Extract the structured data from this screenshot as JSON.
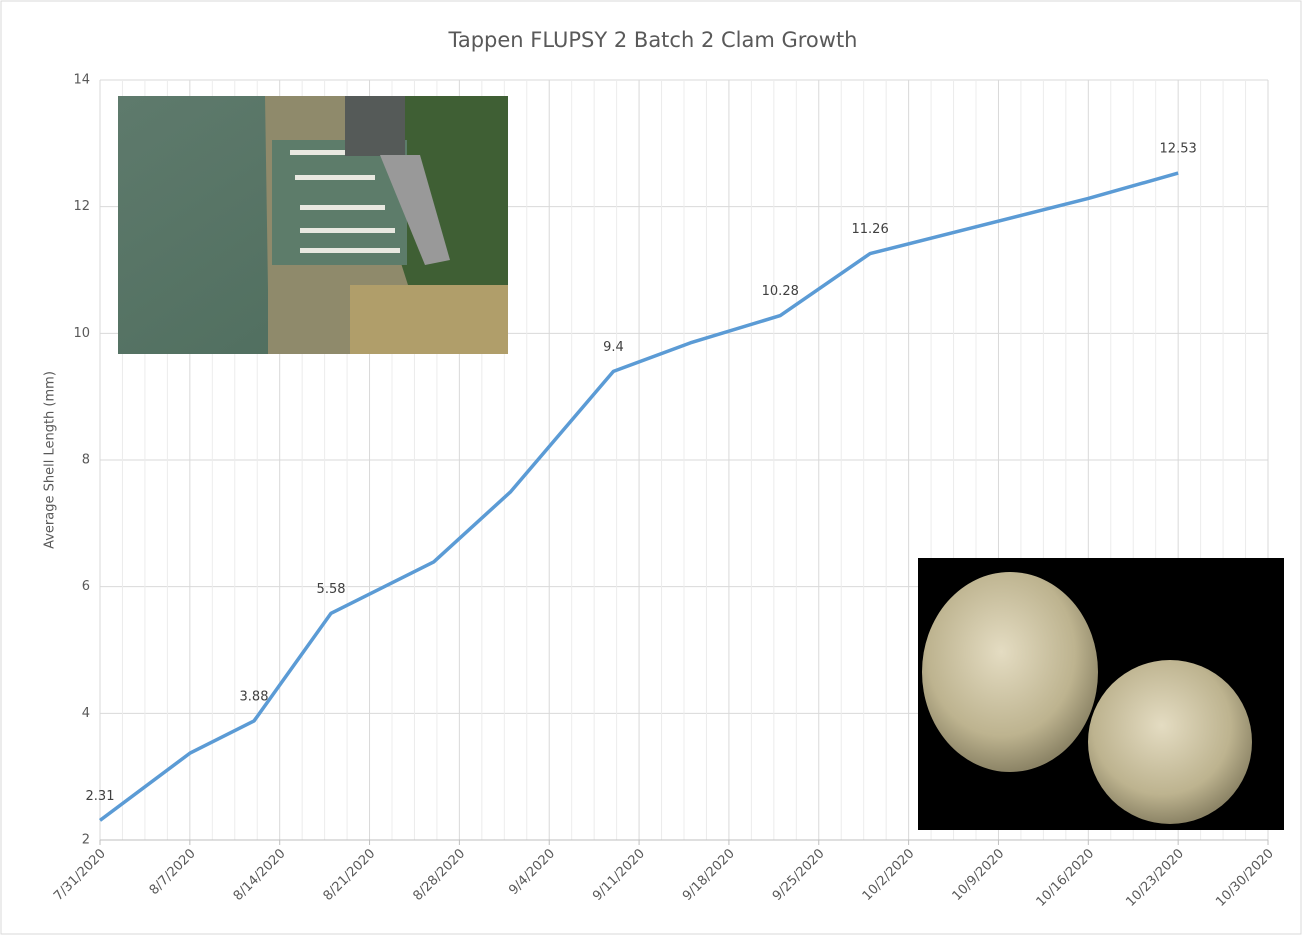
{
  "chart_data": {
    "type": "line",
    "title": "Tappen FLUPSY 2 Batch 2 Clam Growth",
    "y_label": "Average Shell Length (mm)",
    "x": [
      "7/31/2020",
      "8/7/2020",
      "8/12/2020",
      "8/18/2020",
      "8/26/2020",
      "9/1/2020",
      "9/9/2020",
      "9/15/2020",
      "9/22/2020",
      "9/29/2020",
      "10/16/2020",
      "10/23/2020"
    ],
    "series": [
      {
        "name": "Average Shell Length",
        "color": "#5b9bd5",
        "values": [
          2.31,
          3.37,
          3.88,
          5.58,
          6.39,
          7.5,
          9.4,
          9.85,
          10.28,
          11.26,
          12.13,
          12.53
        ],
        "value_labels": [
          "2.31",
          null,
          "3.88",
          "5.58",
          null,
          null,
          "9.4",
          null,
          "10.28",
          "11.26",
          null,
          "12.53"
        ]
      }
    ],
    "xlim": [
      "7/31/2020",
      "10/30/2020"
    ],
    "xticks": [
      "7/31/2020",
      "8/7/2020",
      "8/14/2020",
      "8/21/2020",
      "8/28/2020",
      "9/4/2020",
      "9/11/2020",
      "9/18/2020",
      "9/25/2020",
      "10/2/2020",
      "10/9/2020",
      "10/16/2020",
      "10/23/2020",
      "10/30/2020"
    ],
    "ylim": [
      2,
      14
    ],
    "yticks": [
      2,
      4,
      6,
      8,
      10,
      12,
      14
    ],
    "grid": true
  }
}
